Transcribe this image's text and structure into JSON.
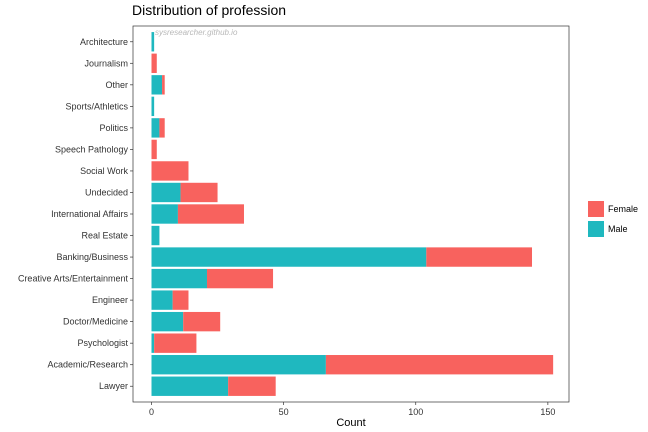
{
  "chart_data": {
    "type": "bar",
    "orientation": "horizontal",
    "stacked": true,
    "title": "Distribution of profession",
    "xlabel": "Count",
    "ylabel": "",
    "watermark": "sysresearcher.github.io",
    "categories": [
      "Architecture",
      "Journalism",
      "Other",
      "Sports/Athletics",
      "Politics",
      "Speech Pathology",
      "Social Work",
      "Undecided",
      "International Affairs",
      "Real Estate",
      "Banking/Business",
      "Creative Arts/Entertainment",
      "Engineer",
      "Doctor/Medicine",
      "Psychologist",
      "Academic/Research",
      "Lawyer"
    ],
    "series": [
      {
        "name": "Male",
        "color": "#1fb8bf",
        "values": [
          1,
          0,
          4,
          1,
          3,
          0,
          0,
          11,
          10,
          3,
          104,
          21,
          8,
          12,
          1,
          66,
          29
        ]
      },
      {
        "name": "Female",
        "color": "#f8625e",
        "values": [
          0,
          2,
          1,
          0,
          2,
          2,
          14,
          14,
          25,
          0,
          40,
          25,
          6,
          14,
          16,
          86,
          18
        ]
      }
    ],
    "xlim": [
      -7,
      158
    ],
    "xticks": [
      0,
      50,
      100,
      150
    ],
    "grid": false,
    "legend": {
      "position": "right",
      "order": [
        "Female",
        "Male"
      ]
    }
  }
}
